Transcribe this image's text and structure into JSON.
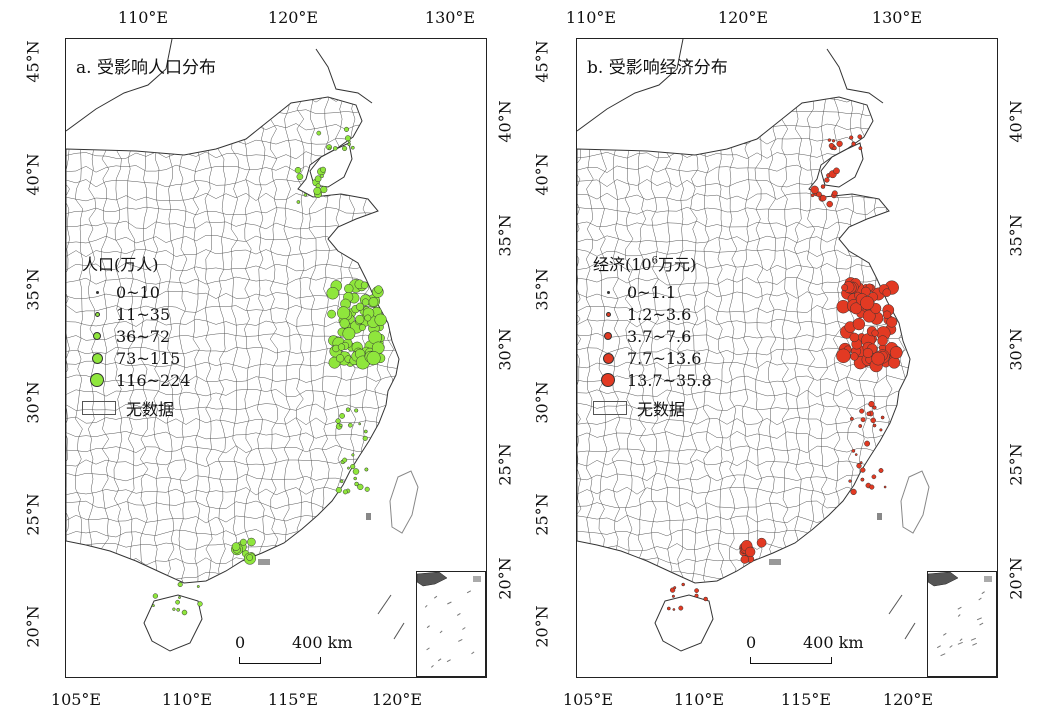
{
  "panels": [
    {
      "id": "a",
      "title": "a. 受影响人口分布",
      "legend_title": "人口(万人)",
      "classes": [
        "0~10",
        "11~35",
        "36~72",
        "73~115",
        "116~224"
      ],
      "symbol_color": "#8fe63c",
      "nodata_label": "无数据",
      "scale_zero": "0",
      "scale_label": "400 km",
      "hotspots": [
        "Jiangsu coast",
        "Bohai rim",
        "Pearl River Delta",
        "Hainan",
        "Southeast coast"
      ]
    },
    {
      "id": "b",
      "title": "b. 受影响经济分布",
      "legend_title_main": "经济(10",
      "legend_title_sup": "6",
      "legend_title_rest": "万元)",
      "classes": [
        "0~1.1",
        "1.2~3.6",
        "3.7~7.6",
        "7.7~13.6",
        "13.7~35.8"
      ],
      "symbol_color": "#e23a23",
      "nodata_label": "无数据",
      "scale_zero": "0",
      "scale_label": "400 km",
      "hotspots": [
        "Jiangsu coast",
        "Bohai rim",
        "Pearl River Delta",
        "Southeast coast"
      ]
    }
  ],
  "axes": {
    "top_lon": [
      "110°E",
      "120°E",
      "130°E"
    ],
    "bottom_lon": [
      "105°E",
      "110°E",
      "115°E",
      "120°E"
    ],
    "left_lat": [
      "45°N",
      "40°N",
      "35°N",
      "30°N",
      "25°N",
      "20°N"
    ],
    "right_lat": [
      "40°N",
      "35°N",
      "30°N",
      "25°N",
      "20°N"
    ]
  },
  "colors": {
    "boundary": "#555555",
    "land_outline": "#333333",
    "inset_feature": "#777777"
  }
}
